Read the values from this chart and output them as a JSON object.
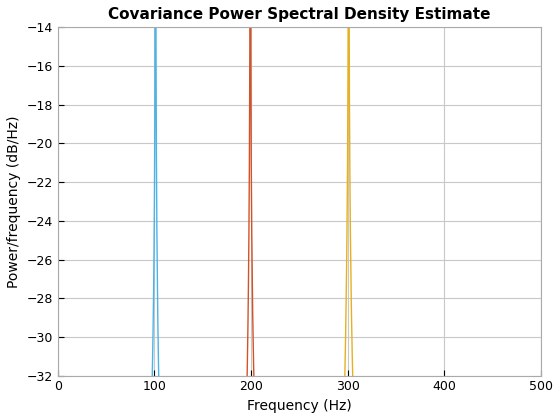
{
  "title": "Covariance Power Spectral Density Estimate",
  "xlabel": "Frequency (Hz)",
  "ylabel": "Power/frequency (dB/Hz)",
  "xlim": [
    0,
    500
  ],
  "ylim": [
    -32,
    -14
  ],
  "yticks": [
    -32,
    -30,
    -28,
    -26,
    -24,
    -22,
    -20,
    -18,
    -16,
    -14
  ],
  "xticks": [
    0,
    100,
    200,
    300,
    400,
    500
  ],
  "colors": [
    "#4db3e6",
    "#d2522a",
    "#e6b020"
  ],
  "fs": 1000,
  "background_color": "#ffffff",
  "grid_color": "#c8c8c8",
  "title_fontsize": 11,
  "axis_fontsize": 10,
  "tick_fontsize": 9,
  "linewidth": 1.0
}
